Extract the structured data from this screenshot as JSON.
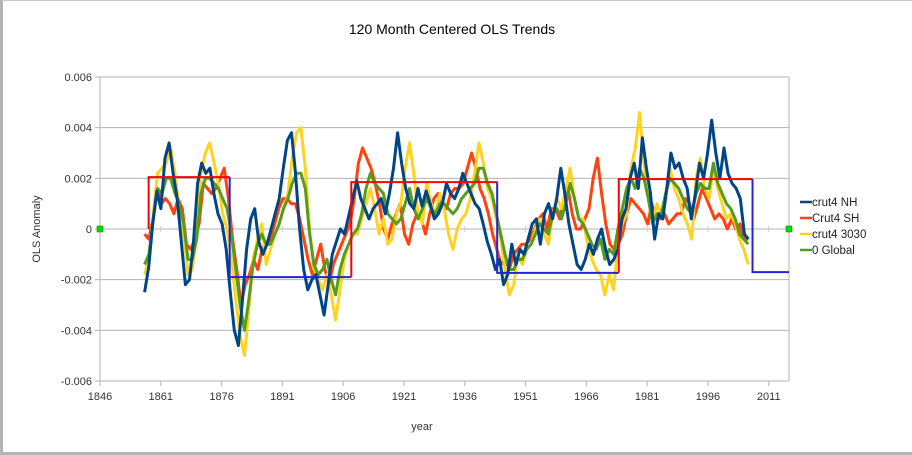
{
  "chart_data": {
    "type": "line",
    "title": "120 Month Centered OLS Trends",
    "xlabel": "year",
    "ylabel": "OLS Anomaly",
    "xlim": [
      1846,
      2016
    ],
    "ylim": [
      -0.006,
      0.006
    ],
    "x_ticks": [
      "1846",
      "1861",
      "1876",
      "1891",
      "1906",
      "1921",
      "1936",
      "1951",
      "1966",
      "1981",
      "1996",
      "2011"
    ],
    "y_ticks": [
      "0.006",
      "0.004",
      "0.002",
      "0",
      "-0.002",
      "-0.004",
      "-0.006"
    ],
    "grid": "horizontal",
    "legend_position": "right",
    "value_scale": 0.001,
    "series": [
      {
        "name": "Crut4 SH",
        "color": "#ff420e",
        "start_year": 1857,
        "values": [
          -0.2,
          -0.4,
          0.4,
          1.6,
          1.0,
          1.2,
          1.0,
          0.6,
          1.2,
          0.8,
          -0.6,
          -0.8,
          -0.4,
          0.2,
          1.8,
          1.6,
          1.4,
          1.6,
          2.0,
          2.4,
          1.2,
          -0.4,
          -1.6,
          -3.0,
          -2.2,
          -1.8,
          -1.2,
          -1.6,
          -0.8,
          -0.6,
          -0.4,
          0.2,
          0.8,
          1.2,
          1.2,
          1.0,
          1.0,
          0.4,
          -0.4,
          -1.2,
          -1.8,
          -1.2,
          -0.6,
          -1.6,
          -2.2,
          -1.4,
          -1.0,
          -0.6,
          -0.2,
          0.2,
          1.2,
          2.6,
          3.2,
          2.8,
          2.4,
          1.8,
          1.0,
          0.0,
          -0.4,
          0.2,
          0.6,
          1.0,
          -0.2,
          -0.6,
          0.2,
          0.6,
          0.4,
          -0.2,
          0.6,
          1.2,
          1.4,
          1.0,
          0.8,
          1.4,
          1.6,
          1.6,
          1.8,
          2.4,
          3.0,
          2.4,
          1.6,
          1.2,
          0.6,
          -0.2,
          -0.8,
          -1.4,
          -1.2,
          -1.6,
          -1.0,
          -0.8,
          -0.6,
          -0.6,
          -0.4,
          0.0,
          0.4,
          0.6,
          0.0,
          0.8,
          0.8,
          0.4,
          1.2,
          1.6,
          0.6,
          0.0,
          0.0,
          0.4,
          0.8,
          2.0,
          2.8,
          1.4,
          0.2,
          -0.6,
          -0.8,
          -0.6,
          -0.2,
          0.6,
          1.2,
          1.0,
          0.8,
          0.6,
          0.2,
          1.0,
          0.4,
          0.4,
          0.6,
          0.2,
          0.4,
          0.6,
          0.6,
          1.2,
          1.0,
          0.4,
          1.0,
          1.6,
          1.2,
          0.8,
          0.4,
          0.6,
          0.4,
          0.0,
          0.4,
          0.0,
          0.2,
          -0.4,
          -0.4
        ],
        "note": "values in units of 0.001"
      },
      {
        "name": "crut4 3030",
        "color": "#ffd320",
        "start_year": 1857,
        "values": [
          -1.8,
          -1.2,
          0.6,
          2.2,
          2.4,
          2.6,
          3.2,
          2.2,
          0.8,
          -0.2,
          -1.8,
          -1.6,
          -0.2,
          2.2,
          3.0,
          3.4,
          2.6,
          1.8,
          0.6,
          0.0,
          -1.2,
          -2.8,
          -4.2,
          -5.0,
          -3.2,
          -1.2,
          -0.4,
          0.2,
          -1.4,
          -0.8,
          -0.2,
          0.2,
          0.8,
          1.4,
          2.8,
          3.8,
          4.0,
          2.4,
          0.0,
          -1.6,
          -2.0,
          -2.4,
          -1.8,
          -2.6,
          -3.6,
          -2.4,
          -1.2,
          -0.6,
          -0.2,
          -0.2,
          0.4,
          1.0,
          1.6,
          0.8,
          -0.2,
          0.4,
          -0.6,
          -0.4,
          0.6,
          1.0,
          2.4,
          3.4,
          2.2,
          0.6,
          0.2,
          1.8,
          1.0,
          0.6,
          1.4,
          0.8,
          -0.2,
          -0.8,
          0.0,
          0.4,
          0.6,
          1.2,
          2.2,
          3.4,
          2.6,
          1.6,
          1.2,
          0.4,
          -0.4,
          -1.6,
          -2.6,
          -2.2,
          -1.0,
          -1.4,
          -0.8,
          -0.6,
          0.0,
          0.4,
          -0.2,
          -0.6,
          0.6,
          1.2,
          0.8,
          1.6,
          2.4,
          1.2,
          0.4,
          0.4,
          -0.6,
          -1.2,
          -1.6,
          -1.8,
          -2.6,
          -1.8,
          -2.4,
          -0.6,
          0.2,
          0.6,
          2.4,
          3.2,
          4.6,
          2.6,
          1.4,
          0.2,
          1.0,
          0.6,
          1.4,
          2.4,
          1.6,
          1.2,
          0.6,
          0.2,
          -0.4,
          2.0,
          2.8,
          1.6,
          1.2,
          2.4,
          1.6,
          1.0,
          0.4,
          0.6,
          0.2,
          -0.4,
          -0.8,
          -1.4
        ],
        "note": "values in units of 0.001"
      },
      {
        "name": "0 Global",
        "color": "#579d1c",
        "start_year": 1857,
        "values": [
          -1.4,
          -1.0,
          0.4,
          1.6,
          1.4,
          2.0,
          2.0,
          1.4,
          1.0,
          0.2,
          -1.2,
          -1.2,
          -0.4,
          1.4,
          2.0,
          2.0,
          1.8,
          1.6,
          1.2,
          0.8,
          -0.2,
          -1.6,
          -3.0,
          -4.0,
          -2.8,
          -1.4,
          -0.6,
          -0.2,
          -0.6,
          -0.6,
          -0.2,
          0.2,
          0.8,
          1.2,
          1.8,
          2.2,
          2.2,
          1.6,
          -0.2,
          -1.4,
          -1.8,
          -1.6,
          -1.2,
          -2.0,
          -2.6,
          -1.6,
          -1.0,
          -0.6,
          -0.2,
          0.0,
          0.6,
          1.6,
          2.2,
          1.8,
          1.6,
          1.4,
          0.6,
          0.4,
          0.2,
          0.4,
          1.0,
          1.6,
          0.8,
          0.4,
          0.8,
          1.2,
          0.8,
          0.6,
          1.0,
          1.0,
          0.8,
          0.6,
          0.8,
          1.2,
          1.4,
          1.6,
          1.8,
          2.4,
          2.4,
          1.8,
          1.4,
          0.6,
          -0.2,
          -1.0,
          -1.6,
          -1.6,
          -1.2,
          -1.2,
          -0.8,
          -0.6,
          -0.2,
          0.2,
          0.0,
          -0.2,
          0.6,
          0.8,
          0.4,
          1.0,
          1.8,
          1.2,
          0.4,
          0.2,
          -0.2,
          -0.6,
          -0.8,
          -0.4,
          -1.2,
          -0.8,
          -1.0,
          0.0,
          0.8,
          1.6,
          2.0,
          1.6,
          2.4,
          2.0,
          1.2,
          0.2,
          0.6,
          0.6,
          1.4,
          2.0,
          1.8,
          1.6,
          1.2,
          0.8,
          0.6,
          1.4,
          1.8,
          1.6,
          1.6,
          2.6,
          1.8,
          1.4,
          1.0,
          0.8,
          0.4,
          -0.2,
          -0.4,
          -0.6
        ],
        "note": "values in units of 0.001"
      },
      {
        "name": "crut4 NH",
        "color": "#004586",
        "start_year": 1857,
        "values": [
          -2.5,
          -1.5,
          0.2,
          1.5,
          0.8,
          2.8,
          3.4,
          2.2,
          1.2,
          -0.5,
          -2.2,
          -2.0,
          -0.5,
          1.8,
          2.6,
          2.2,
          2.4,
          1.4,
          0.6,
          0.2,
          -0.8,
          -2.5,
          -4.0,
          -4.6,
          -2.8,
          -0.8,
          0.4,
          0.8,
          -0.5,
          -1.0,
          -0.6,
          0.0,
          0.6,
          1.2,
          2.4,
          3.5,
          3.8,
          2.2,
          0.0,
          -1.6,
          -2.4,
          -2.0,
          -1.8,
          -2.6,
          -3.4,
          -2.2,
          -1.0,
          -0.5,
          0.0,
          -0.2,
          0.5,
          1.2,
          1.9,
          1.2,
          0.8,
          0.4,
          0.8,
          1.0,
          1.2,
          0.6,
          1.4,
          2.4,
          3.8,
          2.6,
          1.6,
          1.0,
          0.8,
          1.6,
          0.9,
          1.5,
          1.0,
          0.4,
          0.6,
          1.0,
          1.8,
          1.4,
          1.2,
          1.6,
          2.2,
          1.8,
          1.4,
          1.0,
          0.8,
          0.2,
          -0.5,
          -1.0,
          -1.6,
          -1.2,
          -2.2,
          -1.8,
          -0.6,
          -1.4,
          -0.8,
          -1.0,
          -0.4,
          0.2,
          0.4,
          -0.6,
          0.6,
          1.0,
          0.4,
          1.2,
          2.4,
          1.4,
          0.2,
          -0.6,
          -1.4,
          -1.6,
          -1.2,
          -0.6,
          -1.0,
          -0.4,
          0.0,
          -0.8,
          -1.4,
          -1.2,
          -0.8,
          0.4,
          0.8,
          2.0,
          2.6,
          1.6,
          3.6,
          2.4,
          1.4,
          -0.4,
          0.6,
          0.4,
          1.6,
          3.0,
          2.4,
          2.6,
          2.0,
          1.6,
          0.4,
          1.4,
          2.6,
          2.0,
          3.0,
          4.3,
          3.0,
          2.0,
          3.2,
          2.2,
          1.8,
          1.6,
          1.2,
          -0.2,
          -0.4
        ],
        "note": "values in units of 0.001"
      }
    ],
    "step_overlays": [
      {
        "name": "positive-trend-step-1",
        "color": "#ff0000",
        "x_start": 1858,
        "x_end": 1878,
        "value": 0.00205
      },
      {
        "name": "negative-trend-step-1",
        "color": "#2323dc",
        "x_start": 1878,
        "x_end": 1908,
        "value": -0.0019
      },
      {
        "name": "positive-trend-step-2",
        "color": "#ff0000",
        "x_start": 1908,
        "x_end": 1944,
        "value": 0.00185
      },
      {
        "name": "negative-trend-step-2",
        "color": "#2323dc",
        "x_start": 1944,
        "x_end": 1974,
        "value": -0.00173
      },
      {
        "name": "positive-trend-step-3",
        "color": "#ff0000",
        "x_start": 1974,
        "x_end": 2007,
        "value": 0.00197
      },
      {
        "name": "negative-trend-step-3",
        "color": "#2323dc",
        "x_start": 2007,
        "x_end": 2016,
        "value": -0.0017
      }
    ],
    "markers": [
      {
        "name": "zero-marker-left",
        "color": "#00dd00",
        "x": 1846,
        "value": 0
      },
      {
        "name": "zero-marker-right",
        "color": "#00dd00",
        "x": 2016,
        "value": 0
      }
    ]
  },
  "legend": {
    "items": [
      {
        "label": "crut4 NH",
        "color": "#004586"
      },
      {
        "label": "Crut4 SH",
        "color": "#ff420e"
      },
      {
        "label": "crut4 3030",
        "color": "#ffd320"
      },
      {
        "label": "0 Global",
        "color": "#579d1c"
      }
    ]
  }
}
